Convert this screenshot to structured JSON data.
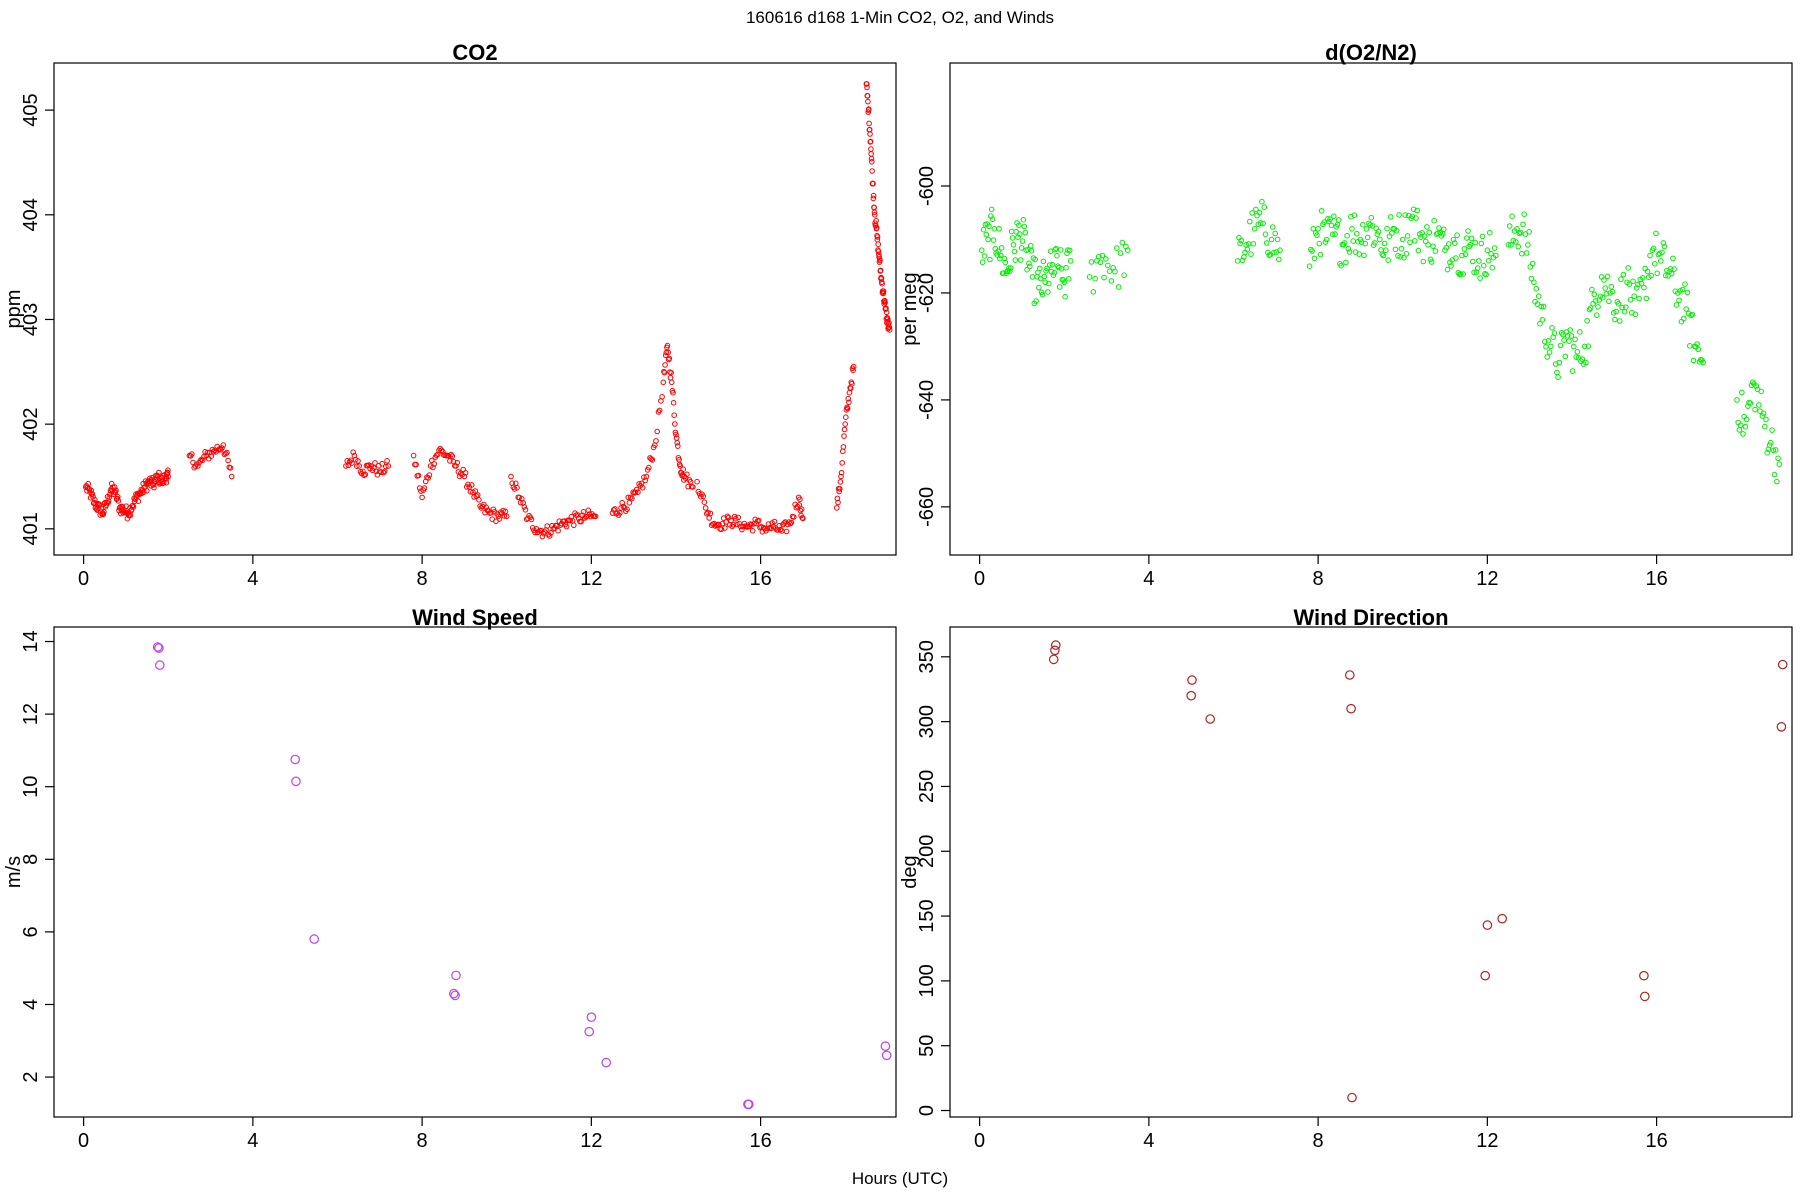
{
  "figure": {
    "title": "160616   d168   1-Min CO2, O2, and Winds",
    "xlabel": "Hours (UTC)"
  },
  "chart_data": [
    {
      "id": "co2",
      "type": "scatter",
      "title": "CO2",
      "xlabel": "",
      "ylabel": "ppm",
      "xlim": [
        -0.7,
        19.2
      ],
      "ylim": [
        400.75,
        405.45
      ],
      "xticks": [
        0,
        4,
        8,
        12,
        16
      ],
      "yticks": [
        401,
        402,
        403,
        404,
        405
      ],
      "color": "#ff0000",
      "marker": "open-circle-small",
      "grid": false,
      "segments": [
        {
          "x": [
            0.05,
            0.15,
            0.25,
            0.35,
            0.45,
            0.55,
            0.65,
            0.75,
            0.85,
            0.95,
            1.05,
            1.15,
            1.25,
            1.35,
            1.45,
            1.55,
            1.65,
            1.75,
            1.85,
            1.95,
            2.0
          ],
          "y": [
            401.4,
            401.35,
            401.25,
            401.2,
            401.15,
            401.25,
            401.38,
            401.35,
            401.2,
            401.18,
            401.15,
            401.22,
            401.3,
            401.35,
            401.4,
            401.45,
            401.42,
            401.5,
            401.45,
            401.5,
            401.5
          ]
        },
        {
          "x": [
            2.5,
            2.7,
            2.9,
            3.1,
            3.3,
            3.5
          ],
          "y": [
            401.7,
            401.6,
            401.7,
            401.75,
            401.8,
            401.5
          ]
        },
        {
          "x": [
            6.2,
            6.4,
            6.6,
            6.8,
            7.0,
            7.2
          ],
          "y": [
            401.6,
            401.7,
            401.55,
            401.6,
            401.55,
            401.6
          ]
        },
        {
          "x": [
            7.8,
            8.0,
            8.2,
            8.4,
            8.6,
            8.8,
            9.0,
            9.2,
            9.4,
            9.6,
            9.8,
            10.0
          ],
          "y": [
            401.7,
            401.3,
            401.6,
            401.75,
            401.7,
            401.6,
            401.5,
            401.35,
            401.2,
            401.15,
            401.12,
            401.12
          ]
        },
        {
          "x": [
            10.1,
            10.3,
            10.5,
            10.7,
            10.9,
            11.1,
            11.3,
            11.5,
            11.7,
            11.9,
            12.1
          ],
          "y": [
            401.5,
            401.3,
            401.1,
            401.0,
            400.97,
            401.0,
            401.05,
            401.08,
            401.1,
            401.12,
            401.12
          ]
        },
        {
          "x": [
            12.5,
            12.7,
            12.9,
            13.1,
            13.3,
            13.5,
            13.7,
            13.8,
            13.9,
            14.0,
            14.1,
            14.2,
            14.4
          ],
          "y": [
            401.15,
            401.2,
            401.25,
            401.35,
            401.5,
            401.8,
            402.4,
            402.75,
            402.4,
            401.9,
            401.6,
            401.5,
            401.4
          ]
        },
        {
          "x": [
            14.5,
            14.7,
            14.9,
            15.1,
            15.3,
            15.5,
            15.7,
            15.9,
            16.1,
            16.3,
            16.5,
            16.7,
            16.9,
            17.0
          ],
          "y": [
            401.45,
            401.2,
            401.05,
            401.05,
            401.08,
            401.05,
            401.02,
            401.05,
            401.0,
            401.02,
            400.98,
            401.05,
            401.3,
            401.1
          ]
        },
        {
          "x": [
            17.8,
            17.9,
            18.0,
            18.1,
            18.2
          ],
          "y": [
            401.2,
            401.5,
            402.0,
            402.3,
            402.55
          ]
        },
        {
          "x": [
            18.5,
            18.55,
            18.6,
            18.65,
            18.7,
            18.75,
            18.8,
            18.85,
            18.9,
            18.95,
            19.0,
            19.05
          ],
          "y": [
            405.25,
            405.0,
            404.7,
            404.3,
            404.0,
            403.8,
            403.6,
            403.4,
            403.25,
            403.1,
            402.98,
            402.9
          ]
        }
      ]
    },
    {
      "id": "o2",
      "type": "scatter",
      "title": "d(O2/N2)",
      "xlabel": "",
      "ylabel": "per meg",
      "xlim": [
        -0.7,
        19.2
      ],
      "ylim": [
        -669,
        -577
      ],
      "xticks": [
        0,
        4,
        8,
        12,
        16
      ],
      "yticks": [
        -600,
        -620,
        -640,
        -660
      ],
      "color": "#00ee00",
      "marker": "open-circle-small",
      "grid": false,
      "segments": [
        {
          "x": [
            0.05,
            0.2,
            0.35,
            0.5,
            0.65,
            0.8,
            0.95,
            1.1,
            1.25,
            1.4,
            1.55,
            1.7,
            1.85,
            2.0,
            2.15
          ],
          "y": [
            -612,
            -610,
            -608,
            -613,
            -616,
            -611,
            -609,
            -612,
            -617,
            -619,
            -618,
            -616,
            -615,
            -618,
            -614
          ]
        },
        {
          "x": [
            2.6,
            2.9,
            3.2,
            3.5
          ],
          "y": [
            -617,
            -613,
            -616,
            -612
          ]
        },
        {
          "x": [
            6.1,
            6.3,
            6.5,
            6.7,
            6.9,
            7.1
          ],
          "y": [
            -614,
            -611,
            -608,
            -607,
            -610,
            -612
          ]
        },
        {
          "x": [
            7.8,
            8.0,
            8.2,
            8.4,
            8.6,
            8.8,
            9.0,
            9.2,
            9.4,
            9.6,
            9.8,
            10.0,
            10.2,
            10.4,
            10.6,
            10.8,
            11.0,
            11.2,
            11.4,
            11.6,
            11.8,
            12.0,
            12.2
          ],
          "y": [
            -615,
            -608,
            -610,
            -609,
            -611,
            -608,
            -610,
            -607,
            -609,
            -612,
            -608,
            -610,
            -606,
            -609,
            -611,
            -609,
            -612,
            -610,
            -613,
            -611,
            -614,
            -612,
            -613
          ]
        },
        {
          "x": [
            12.5,
            12.7,
            12.9,
            13.1,
            13.3,
            13.5,
            13.7,
            13.9,
            14.1,
            14.3,
            14.5,
            14.7,
            14.9,
            15.1,
            15.3,
            15.5,
            15.7,
            15.9,
            16.1,
            16.3,
            16.5,
            16.7,
            16.9,
            17.1
          ],
          "y": [
            -611,
            -608,
            -609,
            -618,
            -625,
            -630,
            -633,
            -628,
            -632,
            -630,
            -622,
            -617,
            -620,
            -622,
            -618,
            -624,
            -619,
            -612,
            -614,
            -616,
            -620,
            -623,
            -630,
            -633
          ]
        },
        {
          "x": [
            17.9,
            18.1,
            18.3,
            18.5,
            18.7,
            18.9
          ],
          "y": [
            -640,
            -645,
            -637,
            -643,
            -648,
            -652
          ]
        }
      ]
    },
    {
      "id": "wind-speed",
      "type": "scatter",
      "title": "Wind Speed",
      "xlabel": "",
      "ylabel": "m/s",
      "xlim": [
        -0.7,
        19.2
      ],
      "ylim": [
        0.9,
        14.4
      ],
      "xticks": [
        0,
        4,
        8,
        12,
        16
      ],
      "yticks": [
        2,
        4,
        6,
        8,
        10,
        12,
        14
      ],
      "color": "#c040f0",
      "marker": "open-circle",
      "grid": false,
      "x": [
        1.75,
        1.78,
        1.8,
        5.0,
        5.02,
        5.45,
        8.75,
        8.78,
        8.8,
        11.95,
        12.0,
        12.35,
        15.7,
        15.72,
        18.95,
        18.98
      ],
      "y": [
        13.85,
        13.82,
        13.35,
        10.75,
        10.15,
        5.8,
        4.3,
        4.25,
        4.8,
        3.25,
        3.65,
        2.4,
        1.25,
        1.25,
        2.85,
        2.6
      ]
    },
    {
      "id": "wind-direction",
      "type": "scatter",
      "title": "Wind Direction",
      "xlabel": "",
      "ylabel": "deg",
      "xlim": [
        -0.7,
        19.2
      ],
      "ylim": [
        -5,
        373
      ],
      "xticks": [
        0,
        4,
        8,
        12,
        16
      ],
      "yticks": [
        0,
        50,
        100,
        150,
        200,
        250,
        300,
        350
      ],
      "color": "#b22222",
      "marker": "open-circle",
      "grid": false,
      "x": [
        1.75,
        1.78,
        1.8,
        5.0,
        5.02,
        5.45,
        8.75,
        8.78,
        8.8,
        11.95,
        12.0,
        12.35,
        15.7,
        15.72,
        18.95,
        18.98
      ],
      "y": [
        348,
        355,
        359,
        320,
        332,
        302,
        336,
        310,
        10,
        104,
        143,
        148,
        104,
        88,
        296,
        344
      ]
    }
  ]
}
